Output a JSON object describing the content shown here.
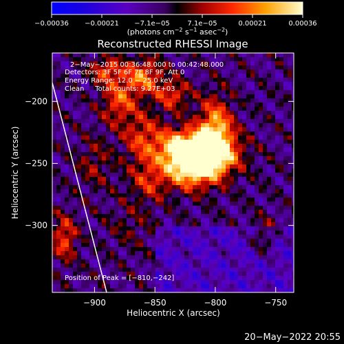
{
  "chart_data": {
    "type": "heatmap",
    "title": "Reconstructed RHESSI Image",
    "xlabel": "Heliocentric X (arcsec)",
    "ylabel": "Heliocentric Y (arcsec)",
    "xlim": [
      -935,
      -735
    ],
    "ylim": [
      -354,
      -161
    ],
    "x_ticks": [
      -900,
      -850,
      -800,
      -750
    ],
    "y_ticks": [
      -200,
      -250,
      -300
    ],
    "x_tick_labels": [
      "−900",
      "−850",
      "−800",
      "−750"
    ],
    "y_tick_labels": [
      "−200",
      "−250",
      "−300"
    ],
    "colorbar": {
      "min": -0.00036,
      "max": 0.00036,
      "tick_labels": [
        "−0.00036",
        "−0.00021",
        "−7.1e−05",
        "7.1e−05",
        "0.00021",
        "0.00036"
      ],
      "label_prefix": "(photons cm",
      "label_exp1": "−2",
      "label_mid": " s",
      "label_exp2": "−1",
      "label_mid2": " asec",
      "label_exp3": "−2",
      "label_suffix": ")"
    },
    "annotations": [
      "2−May−2015 00:36:48.000 to 00:42:48.000",
      "Detectors: 3F 5F 6F 7F 8F 9F, Att 0",
      "Energy Range: 12.0 − 25.0 keV",
      "Clean     Total counts: 9.27E+03"
    ],
    "peak_label": "Position of Peak = [−810,−242]",
    "peak": [
      -810,
      -242
    ],
    "limb_line": [
      [
        -935,
        -185
      ],
      [
        -890,
        -354
      ]
    ]
  },
  "footer": {
    "date": "20−May−2022 20:55"
  }
}
